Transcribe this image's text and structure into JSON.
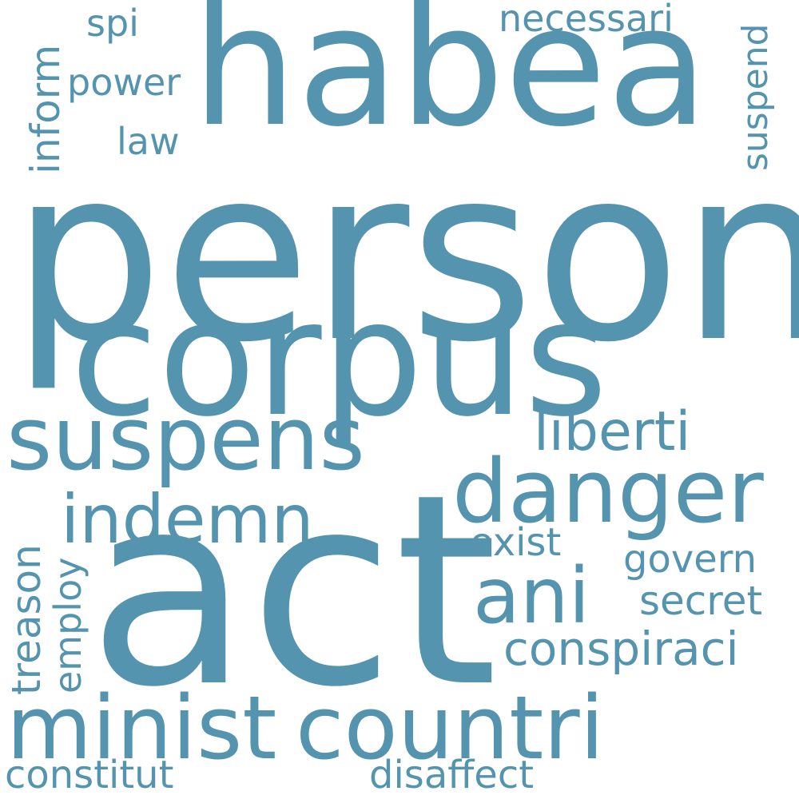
{
  "word_color": "#5494ae",
  "background_color": "#ffffff",
  "words": {
    "person": "person",
    "act": "act",
    "corpus": "corpus",
    "habea": "habea",
    "suspens": "suspens",
    "danger": "danger",
    "countri": "countri",
    "minist": "minist",
    "indemn": "indemn",
    "ani": "ani",
    "liberti": "liberti",
    "conspiraci": "conspiraci",
    "constitut": "constitut",
    "disaffect": "disaffect",
    "secret": "secret",
    "govern": "govern",
    "exist": "exist",
    "treason": "treason",
    "employ": "employ",
    "necessari": "necessari",
    "suspend": "suspend",
    "inform": "inform",
    "power": "power",
    "spi": "spi",
    "law": "law"
  }
}
